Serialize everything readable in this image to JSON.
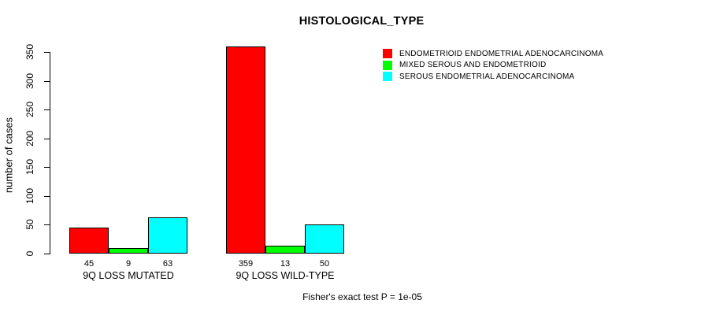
{
  "chart_data": {
    "type": "bar",
    "title": "HISTOLOGICAL_TYPE",
    "ylabel": "number of cases",
    "xlabel": "",
    "ylim": [
      0,
      350
    ],
    "yticks": [
      0,
      50,
      100,
      150,
      200,
      250,
      300,
      350
    ],
    "grid": false,
    "legend_position": "top-right",
    "categories": [
      "9Q LOSS MUTATED",
      "9Q LOSS WILD-TYPE"
    ],
    "series": [
      {
        "name": "ENDOMETRIOID ENDOMETRIAL ADENOCARCINOMA",
        "color": "#FF0000",
        "values": [
          45,
          359
        ]
      },
      {
        "name": "MIXED SEROUS AND ENDOMETRIOID",
        "color": "#00FF00",
        "values": [
          9,
          13
        ]
      },
      {
        "name": "SEROUS ENDOMETRIAL ADENOCARCINOMA",
        "color": "#00FFFF",
        "values": [
          63,
          50
        ]
      }
    ],
    "bar_value_labels": [
      [
        45,
        9,
        63
      ],
      [
        359,
        13,
        50
      ]
    ],
    "annotation": "Fisher's exact test P = 1e-05",
    "axis_color": "#000000",
    "bar_border_color": "#000000"
  }
}
